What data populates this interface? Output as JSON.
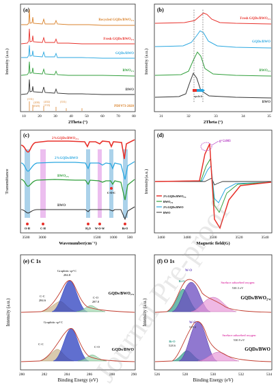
{
  "figure": {
    "watermark": "Journal Pre-proof",
    "colors": {
      "red": "#e8302a",
      "blue": "#2aa7e0",
      "green": "#2f9e3a",
      "black": "#333333",
      "orange": "#d9822b",
      "purple": "#b02fc0",
      "pink": "#e04bb0",
      "navy": "#2b3fbf",
      "band_blue": "#8fc3e3",
      "band_pink": "#e6a9ea"
    },
    "panels": [
      {
        "id": "a",
        "label": "(a)",
        "ylabel": "Intensity (a.u.)",
        "xlabel": "2Theta (°)",
        "xticks": [
          "10",
          "20",
          "30",
          "40",
          "50",
          "60",
          "70",
          "80"
        ],
        "traces": [
          "Recycled GQDs/BWO₂.₄",
          "Fresh GQDs/BWO₂.₄",
          "GQDs/BWO",
          "BWO₂.₄",
          "BWO"
        ],
        "reference": "PDF#73-2020",
        "peak_labels": [
          "(131)",
          "(200)",
          "(020)",
          "(202)",
          "(133)",
          "(331)"
        ]
      },
      {
        "id": "b",
        "label": "(b)",
        "ylabel": "Intensity (a.u.)",
        "xlabel": "2Theta (°)",
        "xticks": [
          "31",
          "32",
          "33",
          "34",
          "35"
        ],
        "traces": [
          "Fresh GQDs/BWO₂.₄",
          "GQDs/BWO",
          "BWO₂.₄",
          "BWO"
        ],
        "annotation": "upshift"
      },
      {
        "id": "c",
        "label": "(c)",
        "ylabel": "Transmittance",
        "xlabel": "Wavenumber(cm⁻¹)",
        "xticks": [
          "3500",
          "3000",
          "1500",
          "1000",
          "500"
        ],
        "traces": [
          "2%GQDs/BWO₂.₄",
          "2%GQDs/BWO",
          "BWO₂.₄",
          "BWO"
        ],
        "band_labels": [
          "O-H",
          "C-H",
          "H₂O",
          "W-O-W",
          "C-O-C",
          "Bi-O"
        ]
      },
      {
        "id": "d",
        "label": "(d)",
        "ylabel": "Intensity(a.u.)",
        "xlabel": "Magnetic field(G)",
        "xticks": [
          "3460",
          "3480",
          "3500",
          "3520",
          "3540"
        ],
        "traces": [
          "2%GQDs/BWO₂.₄",
          "BWO₂.₄",
          "2%GQDs/BWO",
          "BWO"
        ],
        "annotation": "g=2.003"
      },
      {
        "id": "e",
        "label": "(e) C 1s",
        "ylabel": "Intensity (a.u.)",
        "xlabel": "Binding Energy (eV)",
        "xticks": [
          "280",
          "282",
          "284",
          "286",
          "288",
          "290"
        ],
        "upper": {
          "sample": "GQDs/BWO₂.₄",
          "peaks": [
            "Graphitic sp² C",
            "284.8",
            "C-C",
            "284.6",
            "C-O",
            "287.0"
          ]
        },
        "lower": {
          "sample": "GQDs/BWO",
          "peaks": [
            "Graphitic sp² C",
            "C-C",
            "C-O"
          ]
        }
      },
      {
        "id": "f",
        "label": "(f) O 1s",
        "ylabel": "Intensity (a.u.)",
        "xlabel": "Binding Energy (eV)",
        "xticks": [
          "526",
          "528",
          "530",
          "532",
          "534"
        ],
        "upper": {
          "sample": "GQDs/BWO₂.₄",
          "peaks": [
            "W-O",
            "Bi-O",
            "Surface adsorbed oxygen",
            "530.3 eV"
          ]
        },
        "lower": {
          "sample": "GQDs/BWO",
          "peaks": [
            "W-O",
            "529.2",
            "Bi-O",
            "528.6",
            "Surface adsorbed oxygen",
            "530.9 eV"
          ]
        }
      }
    ]
  }
}
